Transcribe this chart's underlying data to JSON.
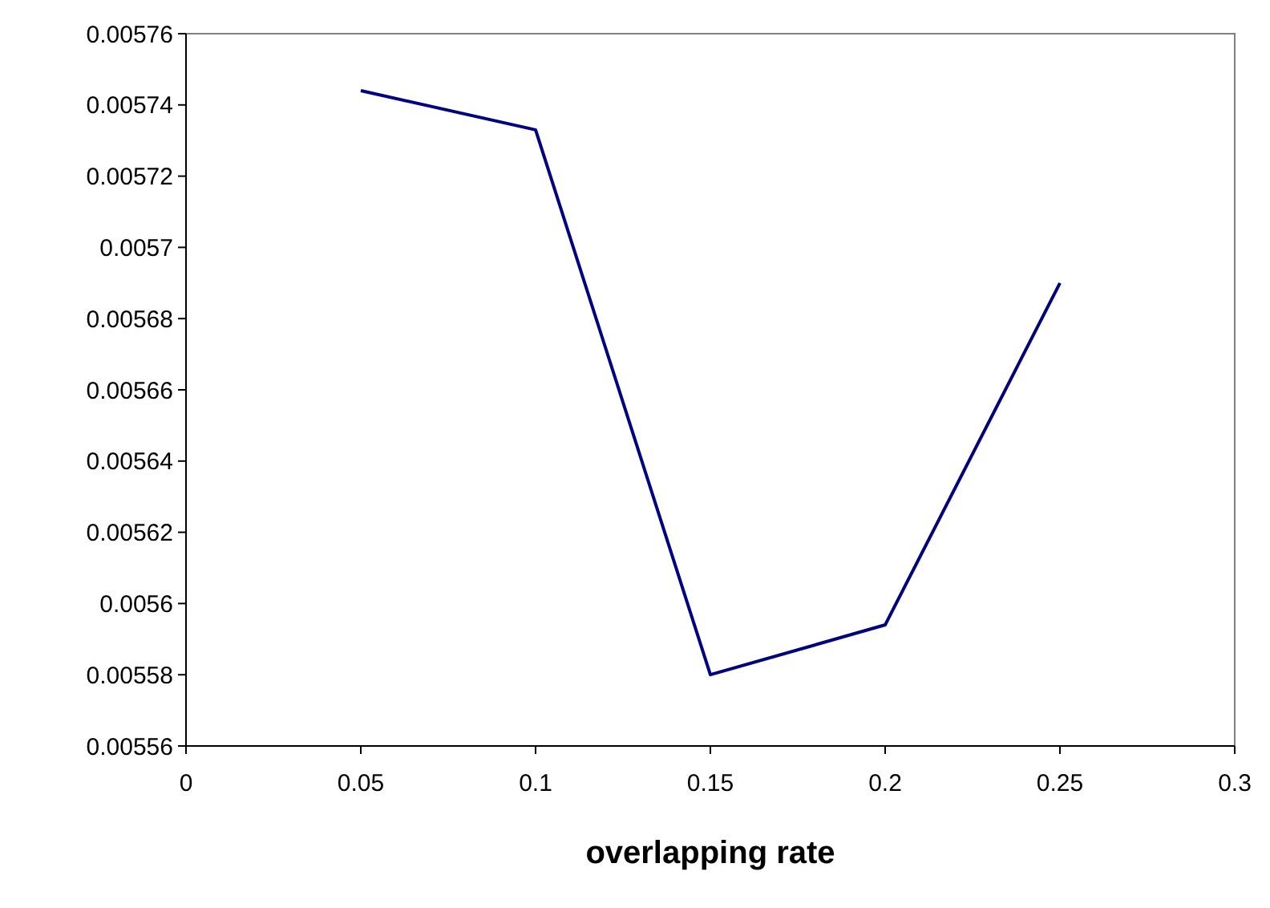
{
  "chart_data": {
    "type": "line",
    "xlabel": "overlapping rate",
    "x": [
      0.05,
      0.1,
      0.15,
      0.2,
      0.25
    ],
    "series": [
      {
        "color": "#000080",
        "values": [
          0.005744,
          0.005733,
          0.00558,
          0.005594,
          0.00569
        ]
      }
    ],
    "xlim": [
      0,
      0.3
    ],
    "xticks": [
      0,
      0.05,
      0.1,
      0.15,
      0.2,
      0.25,
      0.3
    ],
    "ylim": [
      0.00556,
      0.00576
    ],
    "yticks": [
      0.00556,
      0.00558,
      0.0056,
      0.00562,
      0.00564,
      0.00566,
      0.00568,
      0.0057,
      0.00572,
      0.00574,
      0.00576
    ],
    "grid": false,
    "marker": "none",
    "line_style": "solid"
  }
}
